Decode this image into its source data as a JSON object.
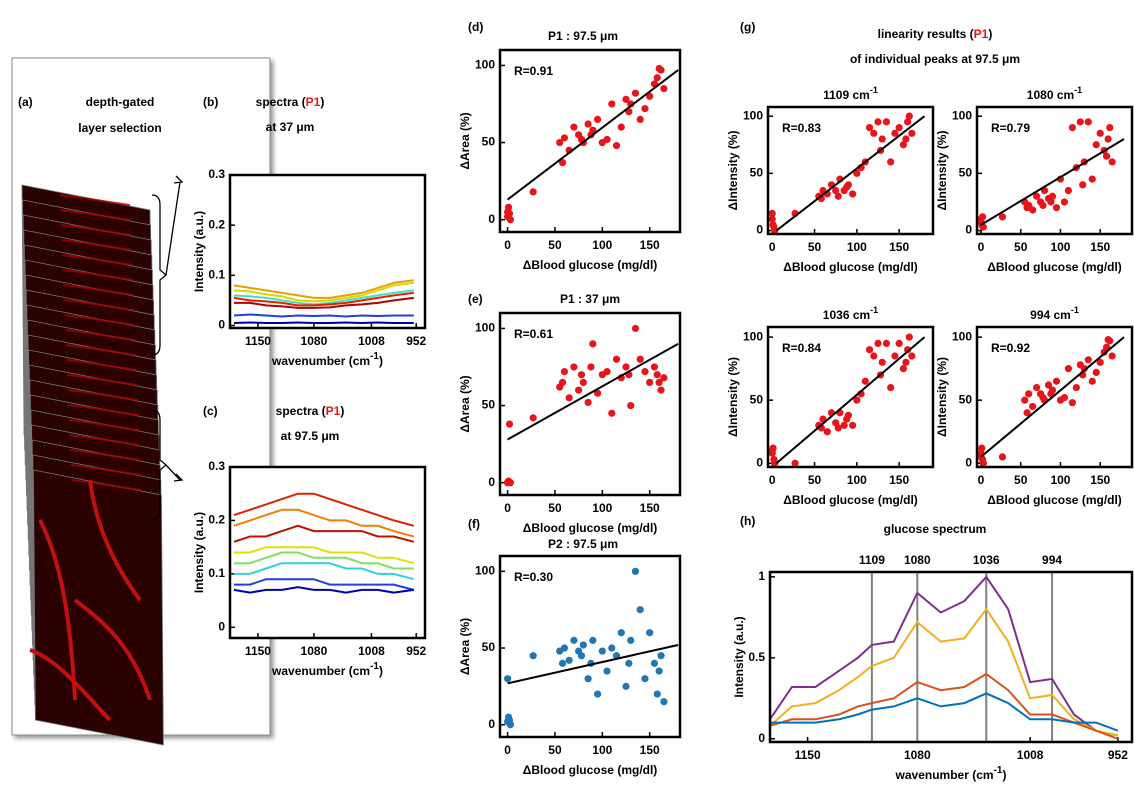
{
  "chart_data": [
    {
      "type": "image",
      "label": "(a)",
      "title": [
        [
          "depth-gated"
        ],
        [
          "layer selection"
        ]
      ]
    },
    {
      "type": "line",
      "label": "(b)",
      "title": [
        [
          "spectra (",
          "P1",
          ")"
        ],
        [
          "at 37 μm"
        ]
      ],
      "highlight": "P1",
      "highlight_color": "#e8141a",
      "xlabel": "wavenumber (cm",
      "xlabel_sup": "-1",
      "xlabel_end": ")",
      "ylabel": "Intensity (a.u.)",
      "x": [
        1180,
        1160,
        1140,
        1120,
        1100,
        1080,
        1060,
        1040,
        1020,
        1000,
        980,
        955
      ],
      "series": [
        {
          "color": "#e8a000",
          "values": [
            0.08,
            0.075,
            0.07,
            0.065,
            0.06,
            0.055,
            0.055,
            0.06,
            0.065,
            0.075,
            0.085,
            0.09
          ]
        },
        {
          "color": "#d8d800",
          "values": [
            0.07,
            0.068,
            0.062,
            0.058,
            0.05,
            0.048,
            0.05,
            0.055,
            0.06,
            0.07,
            0.08,
            0.085
          ]
        },
        {
          "color": "#40e0c0",
          "values": [
            0.06,
            0.058,
            0.055,
            0.05,
            0.045,
            0.042,
            0.045,
            0.05,
            0.055,
            0.06,
            0.065,
            0.07
          ]
        },
        {
          "color": "#e02000",
          "values": [
            0.055,
            0.05,
            0.048,
            0.045,
            0.04,
            0.04,
            0.042,
            0.045,
            0.05,
            0.055,
            0.06,
            0.065
          ]
        },
        {
          "color": "#b00000",
          "values": [
            0.045,
            0.045,
            0.04,
            0.038,
            0.035,
            0.035,
            0.036,
            0.04,
            0.042,
            0.045,
            0.05,
            0.055
          ]
        },
        {
          "color": "#2040e0",
          "values": [
            0.02,
            0.022,
            0.02,
            0.018,
            0.02,
            0.019,
            0.02,
            0.018,
            0.02,
            0.019,
            0.02,
            0.02
          ]
        },
        {
          "color": "#0000a0",
          "values": [
            0.005,
            0.006,
            0.005,
            0.005,
            0.006,
            0.005,
            0.005,
            0.006,
            0.005,
            0.006,
            0.005,
            0.005
          ]
        }
      ],
      "xlim": [
        1185,
        941
      ],
      "ylim": [
        -0.005,
        0.3
      ],
      "xticks": [
        1150,
        1080,
        1008,
        952
      ],
      "yticks": [
        0,
        0.1,
        0.2,
        0.3
      ]
    },
    {
      "type": "line",
      "label": "(c)",
      "title": [
        [
          "spectra (",
          "P1",
          ")"
        ],
        [
          "at 97.5 μm"
        ]
      ],
      "highlight": "P1",
      "highlight_color": "#e8141a",
      "xlabel": "wavenumber (cm",
      "xlabel_sup": "-1",
      "xlabel_end": ")",
      "ylabel": "Intensity (a.u.)",
      "x": [
        1180,
        1160,
        1140,
        1120,
        1100,
        1080,
        1060,
        1040,
        1020,
        1000,
        980,
        955
      ],
      "series": [
        {
          "color": "#e02000",
          "values": [
            0.21,
            0.22,
            0.23,
            0.24,
            0.25,
            0.25,
            0.24,
            0.23,
            0.22,
            0.21,
            0.2,
            0.19
          ]
        },
        {
          "color": "#f08000",
          "values": [
            0.19,
            0.2,
            0.21,
            0.22,
            0.22,
            0.21,
            0.2,
            0.2,
            0.19,
            0.19,
            0.18,
            0.17
          ]
        },
        {
          "color": "#c01000",
          "values": [
            0.16,
            0.17,
            0.17,
            0.18,
            0.19,
            0.18,
            0.18,
            0.18,
            0.18,
            0.17,
            0.17,
            0.16
          ]
        },
        {
          "color": "#e0e000",
          "values": [
            0.14,
            0.14,
            0.15,
            0.15,
            0.15,
            0.15,
            0.14,
            0.14,
            0.14,
            0.13,
            0.13,
            0.12
          ]
        },
        {
          "color": "#80e060",
          "values": [
            0.12,
            0.12,
            0.13,
            0.14,
            0.14,
            0.13,
            0.13,
            0.13,
            0.12,
            0.12,
            0.11,
            0.11
          ]
        },
        {
          "color": "#30d0e0",
          "values": [
            0.1,
            0.1,
            0.11,
            0.12,
            0.12,
            0.12,
            0.12,
            0.11,
            0.11,
            0.1,
            0.1,
            0.09
          ]
        },
        {
          "color": "#2040e0",
          "values": [
            0.08,
            0.08,
            0.09,
            0.09,
            0.09,
            0.09,
            0.08,
            0.08,
            0.08,
            0.08,
            0.08,
            0.07
          ]
        },
        {
          "color": "#0000b0",
          "values": [
            0.07,
            0.065,
            0.07,
            0.07,
            0.075,
            0.07,
            0.07,
            0.065,
            0.07,
            0.07,
            0.065,
            0.07
          ]
        }
      ],
      "xlim": [
        1185,
        941
      ],
      "ylim": [
        -0.02,
        0.3
      ],
      "xticks": [
        1150,
        1080,
        1008,
        952
      ],
      "yticks": [
        0,
        0.1,
        0.2,
        0.3
      ]
    },
    {
      "type": "scatter",
      "label": "(d)",
      "title": [
        [
          "P1 : 97.5 μm"
        ]
      ],
      "annotation": "R=0.91",
      "xlabel": "ΔBlood glucose (mg/dl)",
      "ylabel": "ΔArea (%)",
      "color": "#e8141a",
      "fit_color": "#000000",
      "x": [
        0,
        0,
        1,
        2,
        3,
        27,
        55,
        58,
        60,
        65,
        70,
        75,
        78,
        80,
        85,
        88,
        90,
        95,
        100,
        105,
        110,
        115,
        120,
        125,
        128,
        130,
        135,
        140,
        145,
        150,
        155,
        158,
        160,
        162,
        165
      ],
      "y": [
        2,
        5,
        8,
        4,
        0,
        18,
        50,
        37,
        53,
        45,
        60,
        55,
        52,
        50,
        62,
        55,
        58,
        65,
        50,
        52,
        75,
        48,
        60,
        78,
        70,
        75,
        82,
        65,
        72,
        80,
        88,
        92,
        98,
        97,
        85
      ],
      "fit": {
        "x": [
          0,
          180
        ],
        "y": [
          13,
          97
        ]
      },
      "xlim": [
        -8,
        182
      ],
      "ylim": [
        -8,
        110
      ],
      "xticks": [
        0,
        50,
        100,
        150
      ],
      "yticks": [
        0,
        50,
        100
      ]
    },
    {
      "type": "scatter",
      "label": "(e)",
      "title": [
        [
          "P1 : 37 μm"
        ]
      ],
      "annotation": "R=0.61",
      "xlabel": "ΔBlood glucose (mg/dl)",
      "ylabel": "ΔArea (%)",
      "color": "#e8141a",
      "fit_color": "#000000",
      "x": [
        0,
        0,
        1,
        2,
        3,
        27,
        55,
        58,
        60,
        65,
        70,
        75,
        78,
        80,
        85,
        88,
        90,
        95,
        100,
        105,
        110,
        115,
        120,
        125,
        128,
        130,
        135,
        140,
        145,
        150,
        155,
        158,
        160,
        162,
        165
      ],
      "y": [
        0,
        0,
        1,
        38,
        0,
        42,
        62,
        65,
        72,
        55,
        75,
        60,
        70,
        65,
        52,
        75,
        90,
        58,
        70,
        72,
        45,
        80,
        68,
        75,
        70,
        50,
        100,
        80,
        72,
        65,
        75,
        70,
        65,
        60,
        68
      ],
      "fit": {
        "x": [
          0,
          180
        ],
        "y": [
          28,
          90
        ]
      },
      "xlim": [
        -8,
        182
      ],
      "ylim": [
        -8,
        110
      ],
      "xticks": [
        0,
        50,
        100,
        150
      ],
      "yticks": [
        0,
        50,
        100
      ]
    },
    {
      "type": "scatter",
      "label": "(f)",
      "title": [
        [
          "P2 : 97.5 μm"
        ]
      ],
      "annotation": "R=0.30",
      "xlabel": "ΔBlood glucose (mg/dl)",
      "ylabel": "ΔArea (%)",
      "color": "#1f77b4",
      "fit_color": "#000000",
      "x": [
        0,
        0,
        1,
        2,
        3,
        27,
        55,
        58,
        60,
        65,
        70,
        75,
        78,
        80,
        85,
        88,
        90,
        95,
        100,
        105,
        110,
        115,
        120,
        125,
        128,
        130,
        135,
        140,
        145,
        150,
        155,
        158,
        160,
        162,
        165
      ],
      "y": [
        30,
        2,
        5,
        3,
        0,
        45,
        48,
        40,
        50,
        42,
        55,
        48,
        45,
        52,
        30,
        40,
        55,
        20,
        48,
        35,
        50,
        45,
        60,
        25,
        40,
        55,
        100,
        75,
        30,
        60,
        40,
        20,
        35,
        45,
        15
      ],
      "fit": {
        "x": [
          0,
          180
        ],
        "y": [
          27,
          52
        ]
      },
      "xlim": [
        -8,
        182
      ],
      "ylim": [
        -8,
        110
      ],
      "xticks": [
        0,
        50,
        100,
        150
      ],
      "yticks": [
        0,
        50,
        100
      ]
    },
    {
      "type": "scatter-panels",
      "label": "(g)",
      "title": [
        [
          "linearity results (",
          "P1",
          ")"
        ],
        [
          "of individual peaks at 97.5 μm"
        ]
      ],
      "highlight": "P1",
      "highlight_color": "#e8141a",
      "xlabel": "ΔBlood glucose (mg/dl)",
      "ylabel": "ΔIntensity (%)",
      "color": "#e8141a",
      "fit_color": "#000000",
      "x": [
        0,
        0,
        1,
        2,
        3,
        27,
        55,
        58,
        60,
        65,
        70,
        75,
        78,
        80,
        85,
        88,
        90,
        95,
        100,
        105,
        110,
        115,
        120,
        125,
        128,
        130,
        135,
        140,
        145,
        150,
        155,
        158,
        160,
        162,
        165
      ],
      "panels": [
        {
          "title": "1109 cm",
          "title_sup": "-1",
          "annotation": "R=0.83",
          "y": [
            10,
            15,
            5,
            3,
            0,
            15,
            30,
            28,
            35,
            32,
            40,
            35,
            30,
            45,
            35,
            38,
            40,
            32,
            50,
            55,
            60,
            90,
            85,
            95,
            70,
            80,
            95,
            60,
            85,
            90,
            75,
            80,
            95,
            100,
            85
          ],
          "fit": {
            "x": [
              5,
              180
            ],
            "y": [
              0,
              100
            ]
          }
        },
        {
          "title": "1080 cm",
          "title_sup": "-1",
          "annotation": "R=0.79",
          "y": [
            10,
            8,
            5,
            12,
            3,
            12,
            25,
            20,
            22,
            18,
            30,
            25,
            22,
            35,
            28,
            25,
            30,
            20,
            45,
            25,
            35,
            90,
            55,
            95,
            40,
            60,
            95,
            45,
            75,
            85,
            70,
            65,
            80,
            90,
            60
          ],
          "fit": {
            "x": [
              0,
              180
            ],
            "y": [
              5,
              80
            ]
          }
        },
        {
          "title": "1036 cm",
          "title_sup": "-1",
          "annotation": "R=0.84",
          "y": [
            10,
            8,
            12,
            3,
            0,
            0,
            30,
            28,
            35,
            25,
            40,
            32,
            28,
            40,
            30,
            35,
            38,
            30,
            50,
            55,
            65,
            90,
            85,
            95,
            70,
            80,
            95,
            60,
            85,
            95,
            75,
            80,
            90,
            100,
            85
          ],
          "fit": {
            "x": [
              5,
              180
            ],
            "y": [
              0,
              100
            ]
          }
        },
        {
          "title": "994 cm",
          "title_sup": "-1",
          "annotation": "R=0.92",
          "y": [
            8,
            5,
            12,
            3,
            0,
            5,
            50,
            40,
            55,
            45,
            60,
            55,
            52,
            50,
            62,
            55,
            58,
            65,
            50,
            52,
            75,
            48,
            60,
            78,
            70,
            75,
            82,
            65,
            72,
            80,
            88,
            92,
            98,
            97,
            85
          ],
          "fit": {
            "x": [
              0,
              180
            ],
            "y": [
              5,
              100
            ]
          }
        }
      ],
      "xlim": [
        -5,
        190
      ],
      "ylim": [
        -3,
        108
      ],
      "xticks": [
        0,
        50,
        100,
        150
      ],
      "yticks": [
        0,
        50,
        100
      ]
    },
    {
      "type": "line",
      "label": "(h)",
      "title": [
        [
          "glucose spectrum"
        ]
      ],
      "xlabel": "wavenumber (cm",
      "xlabel_sup": "-1",
      "xlabel_end": ")",
      "ylabel": "Intensity (a.u.)",
      "x": [
        1174,
        1160,
        1145,
        1130,
        1118,
        1109,
        1095,
        1080,
        1065,
        1050,
        1036,
        1022,
        1008,
        994,
        980,
        966,
        952
      ],
      "series": [
        {
          "color": "#7e2f8e",
          "values": [
            0.12,
            0.32,
            0.32,
            0.42,
            0.5,
            0.58,
            0.6,
            0.9,
            0.78,
            0.85,
            1.0,
            0.8,
            0.35,
            0.37,
            0.15,
            0.05,
            0.02
          ]
        },
        {
          "color": "#edb120",
          "values": [
            0.08,
            0.2,
            0.22,
            0.3,
            0.38,
            0.45,
            0.5,
            0.72,
            0.6,
            0.62,
            0.8,
            0.6,
            0.25,
            0.27,
            0.12,
            0.05,
            0.02
          ]
        },
        {
          "color": "#d95319",
          "values": [
            0.08,
            0.12,
            0.12,
            0.15,
            0.2,
            0.22,
            0.25,
            0.35,
            0.3,
            0.32,
            0.4,
            0.3,
            0.15,
            0.15,
            0.1,
            0.05,
            0.0
          ]
        },
        {
          "color": "#0072bd",
          "values": [
            0.1,
            0.1,
            0.1,
            0.12,
            0.15,
            0.18,
            0.2,
            0.25,
            0.2,
            0.22,
            0.28,
            0.22,
            0.12,
            0.12,
            0.1,
            0.1,
            0.05
          ]
        }
      ],
      "vlines": [
        1109,
        1080,
        1036,
        994
      ],
      "vline_color": "#808080",
      "xlim": [
        1174,
        943
      ],
      "ylim": [
        -0.02,
        1.03
      ],
      "xticks": [
        1150,
        1080,
        1008,
        952
      ],
      "yticks": [
        0,
        0.5,
        1
      ]
    }
  ]
}
